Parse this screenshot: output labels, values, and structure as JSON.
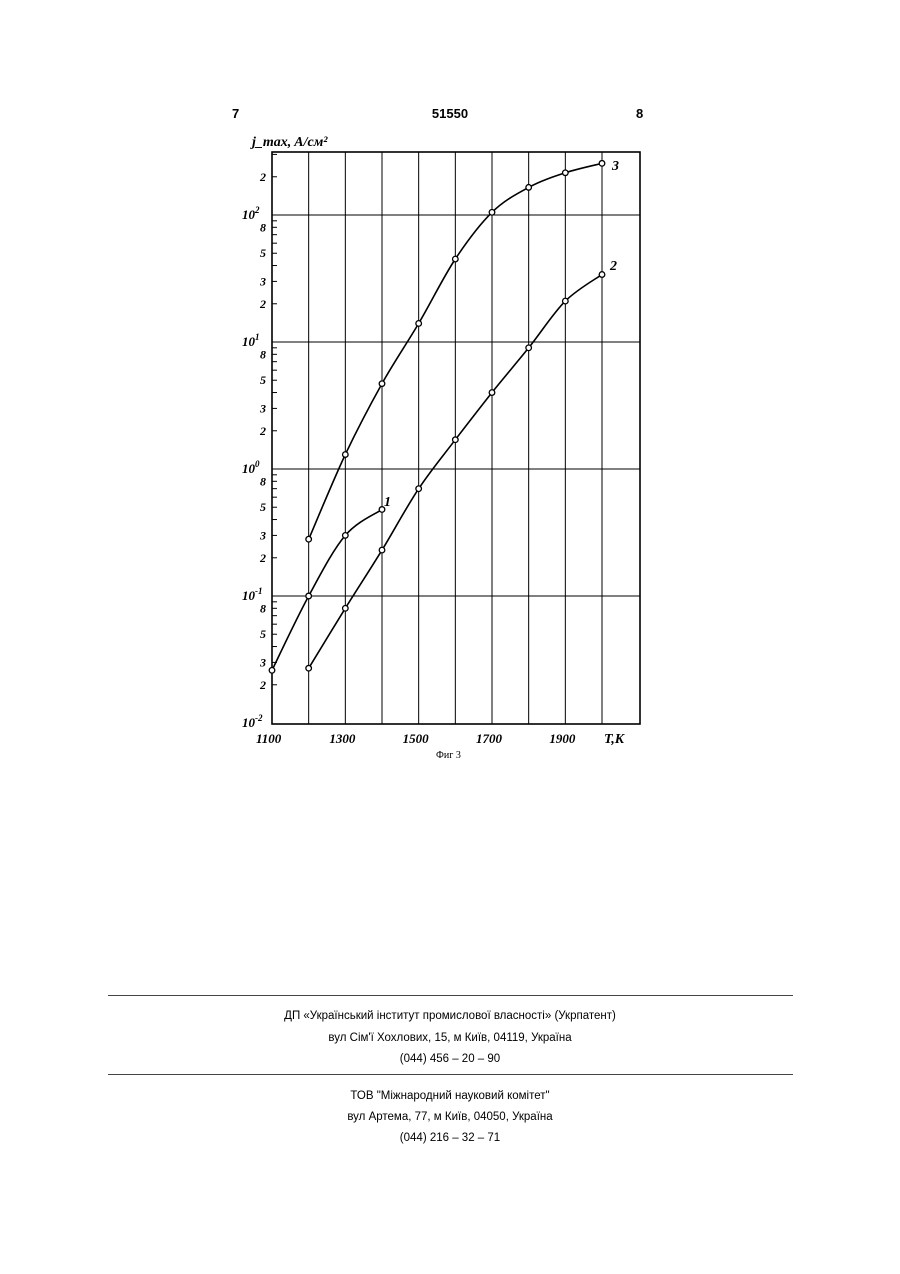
{
  "header": {
    "left_page": "7",
    "patent_number": "51550",
    "right_page": "8"
  },
  "figure_caption": "Фиг 3",
  "chart_data": {
    "type": "line",
    "ylabel": "j_max, A/см²",
    "xlabel": "T,K",
    "y_scale": "log",
    "ylim": [
      0.01,
      300
    ],
    "xlim": [
      1100,
      2000
    ],
    "x_ticks": [
      "1100",
      "1300",
      "1500",
      "1700",
      "1900"
    ],
    "y_decade_labels": [
      "10",
      "10",
      "10",
      "10",
      "10"
    ],
    "y_decade_exponents": [
      "-2",
      "-1",
      "0",
      "1",
      "2"
    ],
    "y_minor_labels": [
      "2",
      "3",
      "5",
      "8"
    ],
    "grid": true,
    "series": [
      {
        "name": "1",
        "x": [
          1100,
          1200,
          1300,
          1400
        ],
        "y": [
          0.026,
          0.1,
          0.3,
          0.48
        ]
      },
      {
        "name": "2",
        "x": [
          1200,
          1300,
          1400,
          1500,
          1600,
          1700,
          1800,
          1900,
          2000
        ],
        "y": [
          0.027,
          0.08,
          0.23,
          0.7,
          1.7,
          4.0,
          9.0,
          21,
          34
        ]
      },
      {
        "name": "3",
        "x": [
          1200,
          1300,
          1400,
          1500,
          1600,
          1700,
          1800,
          1900,
          2000
        ],
        "y": [
          0.28,
          1.3,
          4.7,
          14,
          45,
          105,
          165,
          215,
          255
        ]
      }
    ]
  },
  "footer": {
    "org1_name": "ДП «Український інститут промислової власності» (Укрпатент)",
    "org1_address": "вул  Сім'ї Хохлових, 15, м  Київ, 04119, Україна",
    "org1_phone": "(044) 456 – 20 –  90",
    "org2_name": "ТОВ \"Міжнародний науковий комітет\"",
    "org2_address": "вул  Артема, 77, м  Київ, 04050, Україна",
    "org2_phone": "(044) 216 – 32 – 71"
  }
}
